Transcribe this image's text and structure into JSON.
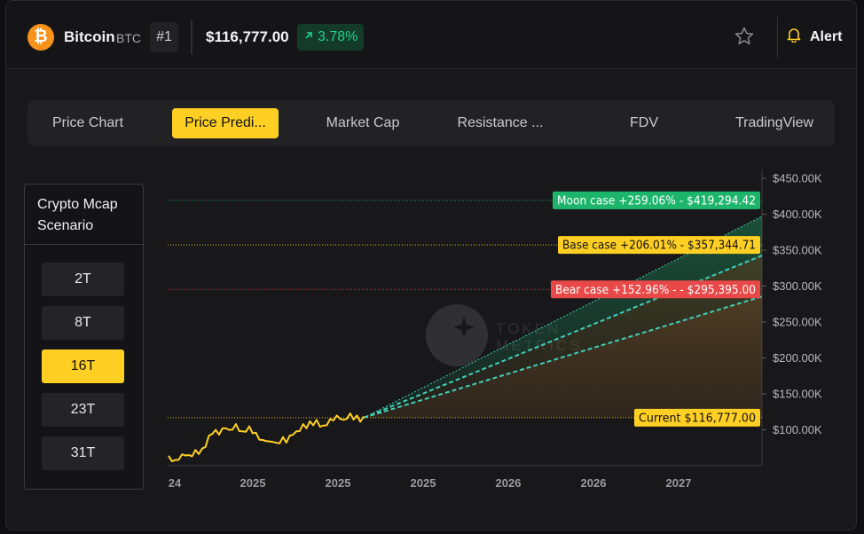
{
  "header": {
    "coin_name": "Bitcoin",
    "coin_symbol": "BTC",
    "rank": "#1",
    "price": "$116,777.00",
    "change": "3.78%",
    "alert_label": "Alert"
  },
  "tabs": [
    {
      "label": "Price Chart"
    },
    {
      "label": "Price Predi..."
    },
    {
      "label": "Market Cap"
    },
    {
      "label": "Resistance ..."
    },
    {
      "label": "FDV"
    },
    {
      "label": "TradingView"
    }
  ],
  "scenario_panel": {
    "title": "Crypto Mcap Scenario",
    "options": [
      "2T",
      "8T",
      "16T",
      "23T",
      "31T"
    ],
    "selected": "16T"
  },
  "colors": {
    "accent": "#ffcf24",
    "moon": "#1db56b",
    "base": "#ffcf24",
    "bear": "#e84848",
    "positive": "#1fd18b"
  },
  "chart_data": {
    "type": "line",
    "y_axis_ticks": [
      "$450.00K",
      "$400.00K",
      "$350.00K",
      "$300.00K",
      "$250.00K",
      "$200.00K",
      "$150.00K",
      "$100.00K"
    ],
    "ylim": [
      50000,
      455000
    ],
    "x_axis_ticks": [
      "24",
      "2025",
      "2025",
      "2025",
      "2026",
      "2026",
      "2027"
    ],
    "current_price": 116777,
    "annotations": [
      {
        "label": "Moon case +259.06% - $419,294.42",
        "value": 419294.42
      },
      {
        "label": "Base case +206.01% - $357,344.71",
        "value": 357344.71
      },
      {
        "label": "Bear case +152.96% - - $295,395.00",
        "value": 295395.0
      },
      {
        "label": "Current $116,777.00",
        "value": 116777
      }
    ],
    "history": [
      62000,
      58000,
      56000,
      60000,
      64000,
      66000,
      63000,
      65000,
      70000,
      68000,
      72000,
      78000,
      90000,
      96000,
      98000,
      95000,
      100000,
      104000,
      98000,
      102000,
      106000,
      100000,
      96000,
      99000,
      103000,
      97000,
      94000,
      88000,
      84000,
      86000,
      82000,
      85000,
      80000,
      83000,
      88000,
      84000,
      90000,
      95000,
      96000,
      100000,
      106000,
      104000,
      110000,
      108000,
      112000,
      106000,
      104000,
      108000,
      113000,
      115000,
      118000,
      117000,
      112000,
      117000,
      121000,
      116000,
      118000,
      113000,
      116777
    ]
  },
  "watermark": "TOKEN METRICS"
}
